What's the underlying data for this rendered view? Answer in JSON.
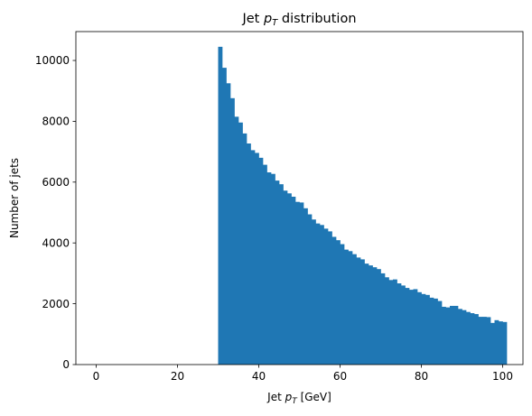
{
  "chart_data": {
    "type": "bar",
    "title_main": "Jet ",
    "title_sym": "p",
    "title_sub": "T",
    "title_rest": " distribution",
    "xlabel_main": "Jet ",
    "xlabel_sym": "p",
    "xlabel_sub": "T",
    "xlabel_rest": " [GeV]",
    "ylabel": "Number of jets",
    "color": "#1f77b4",
    "xlim": [
      -5,
      105
    ],
    "ylim": [
      0,
      10950
    ],
    "grid": false,
    "legend": false,
    "xticks": [
      0,
      20,
      40,
      60,
      80,
      100
    ],
    "xtick_labels": [
      "0",
      "20",
      "40",
      "60",
      "80",
      "100"
    ],
    "yticks": [
      0,
      2000,
      4000,
      6000,
      8000,
      10000
    ],
    "ytick_labels": [
      "0",
      "2000",
      "4000",
      "6000",
      "8000",
      "10000"
    ],
    "bin_edges_start": 0,
    "bin_width": 1,
    "values": [
      0,
      0,
      0,
      0,
      0,
      0,
      0,
      0,
      0,
      0,
      0,
      0,
      0,
      0,
      0,
      0,
      0,
      0,
      0,
      0,
      0,
      0,
      0,
      0,
      0,
      0,
      0,
      0,
      0,
      0,
      10450,
      9760,
      9250,
      8760,
      8150,
      7960,
      7600,
      7270,
      7050,
      6960,
      6800,
      6570,
      6320,
      6270,
      6050,
      5930,
      5720,
      5630,
      5520,
      5350,
      5330,
      5140,
      4940,
      4770,
      4640,
      4590,
      4470,
      4380,
      4200,
      4090,
      3960,
      3780,
      3730,
      3630,
      3520,
      3460,
      3320,
      3260,
      3200,
      3140,
      3000,
      2870,
      2780,
      2800,
      2670,
      2600,
      2520,
      2460,
      2480,
      2380,
      2320,
      2290,
      2200,
      2170,
      2090,
      1900,
      1880,
      1930,
      1930,
      1830,
      1790,
      1730,
      1690,
      1660,
      1570,
      1570,
      1560,
      1370,
      1460,
      1420,
      1400
    ]
  }
}
